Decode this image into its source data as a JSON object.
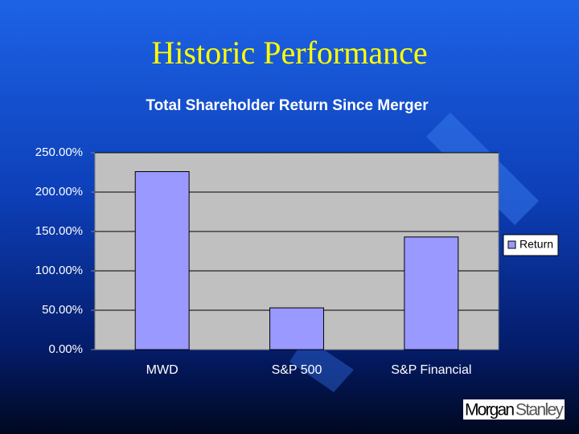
{
  "slide_title": "Historic Performance",
  "logo": {
    "left": "Morgan",
    "right": "Stanley"
  },
  "chart_data": {
    "type": "bar",
    "title": "Total Shareholder Return Since Merger",
    "categories": [
      "MWD",
      "S&P 500",
      "S&P Financial"
    ],
    "series": [
      {
        "name": "Return",
        "color": "#9999ff",
        "values": [
          226,
          53,
          143
        ]
      }
    ],
    "ylim": [
      0,
      250
    ],
    "yticks": [
      {
        "value": 0,
        "label": "0.00%"
      },
      {
        "value": 50,
        "label": "50.00%"
      },
      {
        "value": 100,
        "label": "100.00%"
      },
      {
        "value": 150,
        "label": "150.00%"
      },
      {
        "value": 200,
        "label": "200.00%"
      },
      {
        "value": 250,
        "label": "250.00%"
      }
    ],
    "grid": true,
    "legend": "right"
  }
}
